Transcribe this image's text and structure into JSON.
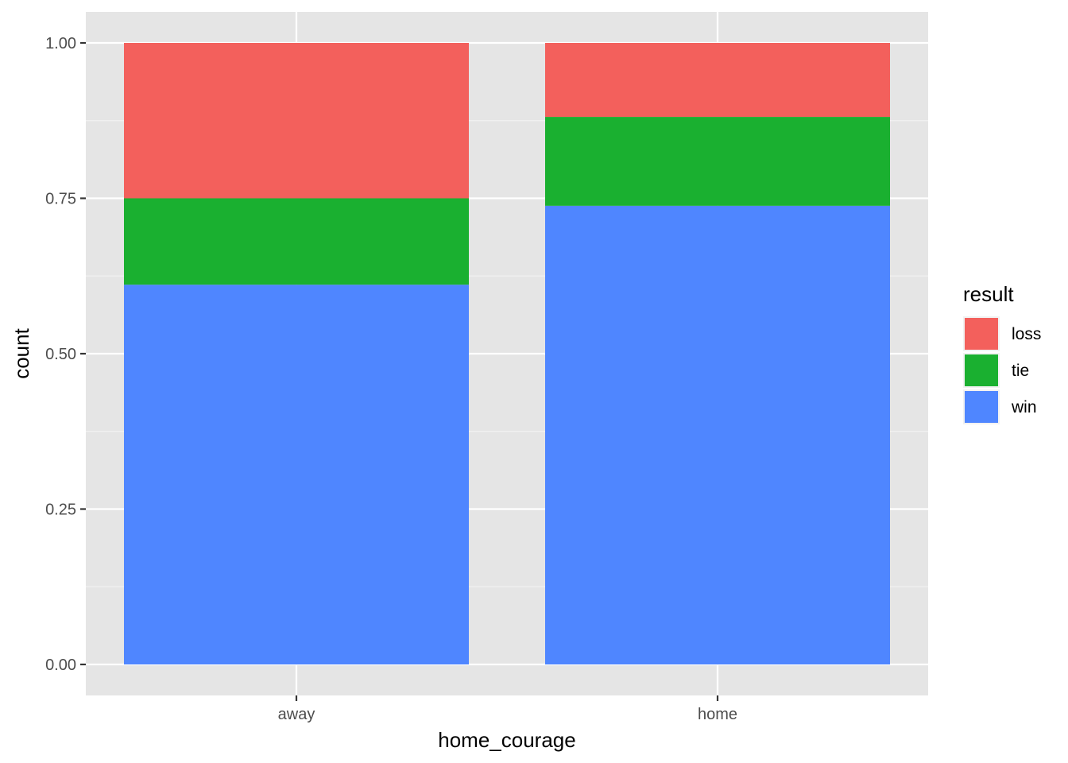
{
  "chart_data": {
    "type": "bar",
    "stacked": true,
    "categories": [
      "away",
      "home"
    ],
    "series": [
      {
        "name": "win",
        "color": "#4F86FF",
        "values": [
          0.611,
          0.738
        ]
      },
      {
        "name": "tie",
        "color": "#1AB030",
        "values": [
          0.139,
          0.143
        ]
      },
      {
        "name": "loss",
        "color": "#F3605C",
        "values": [
          0.25,
          0.119
        ]
      }
    ],
    "xlabel": "home_courage",
    "ylabel": "count",
    "ylim": [
      0,
      1
    ],
    "yticks": [
      "0.00",
      "0.25",
      "0.50",
      "0.75",
      "1.00"
    ],
    "ytick_values": [
      0,
      0.25,
      0.5,
      0.75,
      1.0
    ],
    "grid": true,
    "panel_background": "#E5E5E5",
    "legend": {
      "title": "result",
      "position": "right",
      "entries": [
        "loss",
        "tie",
        "win"
      ]
    }
  }
}
